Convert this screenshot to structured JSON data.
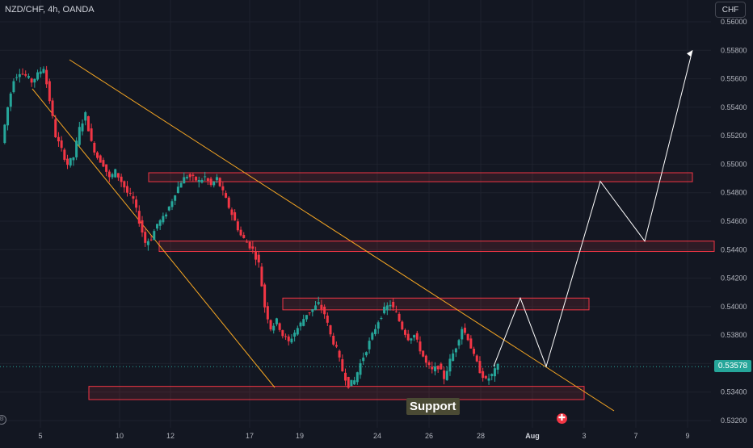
{
  "chart_data": {
    "type": "candlestick",
    "title": "NZD/CHF, 4h, OANDA",
    "currency": "CHF",
    "current_price": "0.53578",
    "y_ticks": [
      "0.56000",
      "0.55800",
      "0.55600",
      "0.55400",
      "0.55200",
      "0.55000",
      "0.54800",
      "0.54600",
      "0.54400",
      "0.54200",
      "0.54000",
      "0.53800",
      "0.53600",
      "0.53400",
      "0.53200"
    ],
    "y_range": [
      0.5313,
      0.5603
    ],
    "x_ticks": [
      "5",
      "10",
      "12",
      "17",
      "19",
      "24",
      "26",
      "28",
      "Aug",
      "3",
      "7",
      "9"
    ],
    "annotation": "Support",
    "colors": {
      "up": "#26a69a",
      "down": "#f23645",
      "trendline": "#f5a623",
      "zone_border": "#f23645",
      "projection": "#ffffff",
      "background": "#131722"
    },
    "price_path": [
      0.5515,
      0.554,
      0.556,
      0.5565,
      0.5562,
      0.5558,
      0.5563,
      0.5568,
      0.5545,
      0.552,
      0.551,
      0.55,
      0.5505,
      0.5525,
      0.5535,
      0.5515,
      0.5505,
      0.55,
      0.549,
      0.5495,
      0.5488,
      0.548,
      0.5475,
      0.546,
      0.5445,
      0.5448,
      0.5458,
      0.5462,
      0.547,
      0.548,
      0.5488,
      0.5492,
      0.549,
      0.5488,
      0.5491,
      0.5485,
      0.549,
      0.548,
      0.547,
      0.546,
      0.545,
      0.5445,
      0.544,
      0.543,
      0.54,
      0.5385,
      0.539,
      0.538,
      0.5375,
      0.5382,
      0.5388,
      0.5395,
      0.5398,
      0.5402,
      0.5395,
      0.538,
      0.537,
      0.5355,
      0.5345,
      0.5348,
      0.536,
      0.537,
      0.538,
      0.539,
      0.5398,
      0.5402,
      0.5395,
      0.5385,
      0.5378,
      0.538,
      0.537,
      0.536,
      0.5355,
      0.5358,
      0.535,
      0.5362,
      0.5372,
      0.5385,
      0.5378,
      0.5365,
      0.5355,
      0.5348,
      0.5352,
      0.5358
    ],
    "resistance_zones": [
      {
        "x_start": 0.549,
        "price_high": 0.5494,
        "price_low": 0.549
      },
      {
        "price_high": 0.5446,
        "price_low": 0.5441
      },
      {
        "price_high": 0.5406,
        "price_low": 0.54
      },
      {
        "price_high": 0.5344,
        "price_low": 0.5337
      }
    ],
    "projection": [
      0.5358,
      0.5406,
      0.5358,
      0.5488,
      0.5446,
      0.558
    ]
  }
}
